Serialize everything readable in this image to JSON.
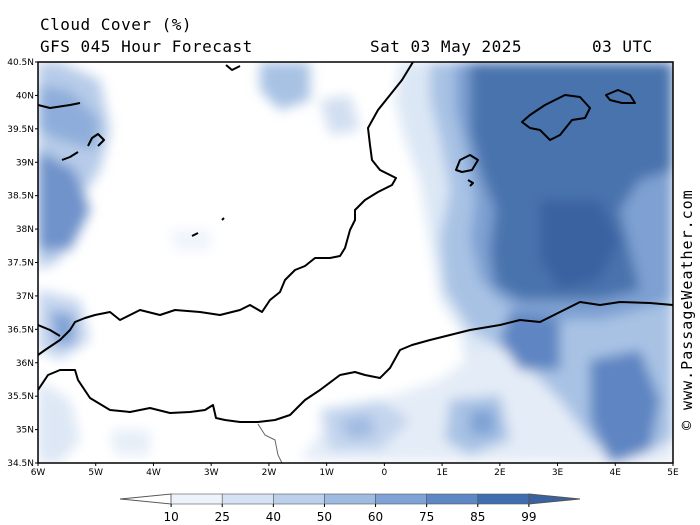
{
  "header": {
    "title": "Cloud Cover (%)",
    "subtitle": "GFS 045 Hour Forecast",
    "datetime": "Sat 03 May 2025",
    "utc": "03 UTC"
  },
  "credit": "© www.PassageWeather.com",
  "map": {
    "lat_labels": [
      "40.5N",
      "40N",
      "39.5N",
      "39N",
      "38.5N",
      "38N",
      "37.5N",
      "37N",
      "36.5N",
      "36N",
      "35.5N",
      "35N",
      "34.5N"
    ],
    "lon_labels": [
      "6W",
      "5W",
      "4W",
      "3W",
      "2W",
      "1W",
      "0",
      "1E",
      "2E",
      "3E",
      "4E",
      "5E"
    ],
    "extent": {
      "lon_min": -6,
      "lon_max": 5,
      "lat_min": 34.5,
      "lat_max": 40.5
    }
  },
  "legend": {
    "ticks": [
      "10",
      "25",
      "40",
      "50",
      "60",
      "75",
      "85",
      "99"
    ],
    "colors": [
      "#ffffff",
      "#eef3fb",
      "#d6e2f3",
      "#bcd0eb",
      "#9fbbe1",
      "#7fa3d6",
      "#5e88c5",
      "#3f6db0"
    ]
  }
}
